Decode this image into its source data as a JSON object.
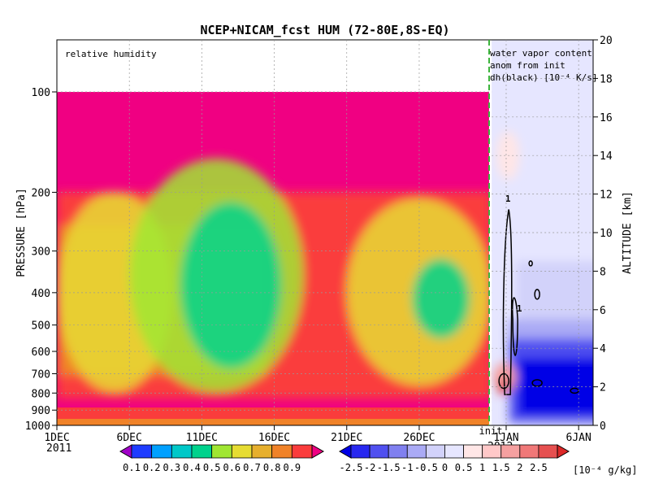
{
  "chart_data": {
    "type": "heatmap",
    "title": "NCEP+NICAM_fcst HUM (72-80E,8S-EQ)",
    "left_panel_label": "relative humidity",
    "right_panel_labels": [
      "water vapor content",
      "anom from init",
      "dh(black) [10⁻⁴ K/s]"
    ],
    "ylabel_left": "PRESSURE [hPa]",
    "ylabel_right": "ALTITUDE [km]",
    "y_left_ticks": [
      100,
      200,
      300,
      400,
      500,
      600,
      700,
      800,
      900,
      1000
    ],
    "y_right_ticks": [
      0,
      2,
      4,
      6,
      8,
      10,
      12,
      14,
      16,
      18,
      20
    ],
    "x_ticks": [
      "1DEC",
      "6DEC",
      "11DEC",
      "16DEC",
      "21DEC",
      "26DEC",
      "1JAN",
      "6JAN"
    ],
    "x_year_labels": [
      "2011",
      "2012"
    ],
    "init_label": "init",
    "init_date": "2011-12-31",
    "x_range": [
      "2011-12-01",
      "2012-01-07"
    ],
    "contour_labels": [
      "1",
      "1"
    ],
    "colorbar_left": {
      "labels": [
        "0.1",
        "0.2",
        "0.3",
        "0.4",
        "0.5",
        "0.6",
        "0.7",
        "0.8",
        "0.9"
      ],
      "colors": [
        "#a000c8",
        "#1e3cff",
        "#00a0ff",
        "#00c8c8",
        "#00d28c",
        "#a0e632",
        "#e6dc32",
        "#e6af2d",
        "#f08228",
        "#fa3c3c",
        "#f00082"
      ]
    },
    "colorbar_right": {
      "labels": [
        "-2.5",
        "-2",
        "-1.5",
        "-1",
        "-0.5",
        "0",
        "0.5",
        "1",
        "1.5",
        "2",
        "2.5"
      ],
      "unit": "[10⁻⁴ g/kg]",
      "colors": [
        "#0000e6",
        "#2828f0",
        "#5050f0",
        "#8080f0",
        "#aaaaf5",
        "#d2d2fa",
        "#e6e6ff",
        "#ffe6e6",
        "#ffc8c8",
        "#f5a0a0",
        "#f07878",
        "#e65050",
        "#dc2828"
      ]
    },
    "rh_fields": [
      {
        "x": 4,
        "y": 0.6,
        "rx": 4,
        "ry": 0.3,
        "level": 0.6
      },
      {
        "x": 11,
        "y": 0.55,
        "rx": 6,
        "ry": 0.35,
        "level": 0.5
      },
      {
        "x": 12,
        "y": 0.58,
        "rx": 3.5,
        "ry": 0.25,
        "level": 0.4
      },
      {
        "x": 25,
        "y": 0.6,
        "rx": 5,
        "ry": 0.28,
        "level": 0.6
      },
      {
        "x": 26.5,
        "y": 0.62,
        "rx": 2,
        "ry": 0.12,
        "level": 0.4
      }
    ]
  }
}
